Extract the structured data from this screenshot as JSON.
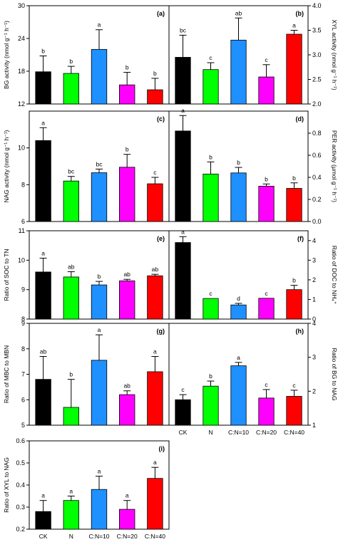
{
  "colors": [
    "#000000",
    "#00ff00",
    "#1e90ff",
    "#ff00ff",
    "#ff0000"
  ],
  "categories": [
    "CK",
    "N",
    "C:N=10",
    "C:N=20",
    "C:N=40"
  ],
  "chart_data": [
    {
      "panel": "(a)",
      "type": "bar",
      "ylabel": "BG activity (nmol g⁻¹ h⁻¹)",
      "ylim": [
        12,
        30
      ],
      "yticks": [
        12,
        18,
        24,
        30
      ],
      "values": [
        17.9,
        17.6,
        22.0,
        15.5,
        14.6
      ],
      "errors": [
        2.9,
        1.3,
        3.6,
        2.3,
        2.1
      ],
      "letters": [
        "b",
        "b",
        "a",
        "b",
        "b"
      ],
      "show_xlabels": false
    },
    {
      "panel": "(b)",
      "type": "bar",
      "ylabel": "XYL activity (nmol g⁻¹ h⁻¹)",
      "ylim": [
        2.0,
        4.0
      ],
      "yticks": [
        2.0,
        2.5,
        3.0,
        3.5,
        4.0
      ],
      "values": [
        2.95,
        2.7,
        3.3,
        2.55,
        3.42
      ],
      "errors": [
        0.45,
        0.14,
        0.45,
        0.25,
        0.08
      ],
      "letters": [
        "bc",
        "c",
        "ab",
        "c",
        "a"
      ],
      "show_xlabels": false
    },
    {
      "panel": "(c)",
      "type": "bar",
      "ylabel": "NAG activity (nmol g⁻¹ h⁻¹)",
      "ylim": [
        6,
        12
      ],
      "yticks": [
        6,
        8,
        10
      ],
      "values": [
        10.4,
        8.2,
        8.65,
        8.95,
        8.05
      ],
      "errors": [
        0.7,
        0.25,
        0.2,
        0.7,
        0.35
      ],
      "letters": [
        "a",
        "bc",
        "bc",
        "b",
        "c"
      ],
      "show_xlabels": false
    },
    {
      "panel": "(d)",
      "type": "bar",
      "ylabel": "PER activity (μmol g⁻¹ h⁻¹)",
      "ylim": [
        0.0,
        1.0
      ],
      "yticks": [
        0.0,
        0.2,
        0.4,
        0.6,
        0.8
      ],
      "values": [
        0.82,
        0.43,
        0.44,
        0.32,
        0.3
      ],
      "errors": [
        0.14,
        0.11,
        0.05,
        0.02,
        0.05
      ],
      "letters": [
        "a",
        "b",
        "b",
        "b",
        "b"
      ],
      "show_xlabels": false
    },
    {
      "panel": "(e)",
      "type": "bar",
      "ylabel": "Ratio of SOC to TN",
      "ylim": [
        8,
        11
      ],
      "yticks": [
        8,
        9,
        10,
        11
      ],
      "values": [
        9.6,
        9.43,
        9.16,
        9.3,
        9.47
      ],
      "errors": [
        0.47,
        0.18,
        0.12,
        0.05,
        0.05
      ],
      "letters": [
        "a",
        "ab",
        "b",
        "ab",
        "ab"
      ],
      "show_xlabels": false
    },
    {
      "panel": "(f)",
      "type": "bar",
      "ylabel": "Ratio of DOC to NH₄⁺",
      "ylim": [
        0,
        4.5
      ],
      "yticks": [
        0,
        1,
        2,
        3,
        4
      ],
      "values": [
        3.9,
        1.05,
        0.72,
        1.06,
        1.5
      ],
      "errors": [
        0.3,
        0.0,
        0.08,
        0.0,
        0.22
      ],
      "letters": [
        "a",
        "c",
        "d",
        "c",
        "b"
      ],
      "show_xlabels": false
    },
    {
      "panel": "(g)",
      "type": "bar",
      "ylabel": "Ratio of MBC to MBN",
      "ylim": [
        5,
        9
      ],
      "yticks": [
        5,
        6,
        7,
        8,
        9
      ],
      "values": [
        6.8,
        5.7,
        7.55,
        6.2,
        7.1
      ],
      "errors": [
        0.9,
        1.1,
        1.0,
        0.15,
        0.6
      ],
      "letters": [
        "ab",
        "b",
        "a",
        "ab",
        "a"
      ],
      "show_xlabels": false
    },
    {
      "panel": "(h)",
      "type": "bar",
      "ylabel": "Ratio of BG to NAG",
      "ylim": [
        1,
        4
      ],
      "yticks": [
        1,
        2,
        3,
        4
      ],
      "values": [
        1.75,
        2.15,
        2.75,
        1.8,
        1.85
      ],
      "errors": [
        0.15,
        0.15,
        0.1,
        0.25,
        0.18
      ],
      "letters": [
        "c",
        "b",
        "a",
        "c",
        "c"
      ],
      "show_xlabels": true
    },
    {
      "panel": "(i)",
      "type": "bar",
      "ylabel": "Ratio of XYL to NAG",
      "ylim": [
        0.2,
        0.6
      ],
      "yticks": [
        0.2,
        0.3,
        0.4,
        0.5,
        0.6
      ],
      "values": [
        0.28,
        0.33,
        0.38,
        0.29,
        0.43
      ],
      "errors": [
        0.05,
        0.02,
        0.06,
        0.04,
        0.05
      ],
      "letters": [
        "a",
        "a",
        "a",
        "a",
        "a"
      ],
      "show_xlabels": true
    }
  ]
}
